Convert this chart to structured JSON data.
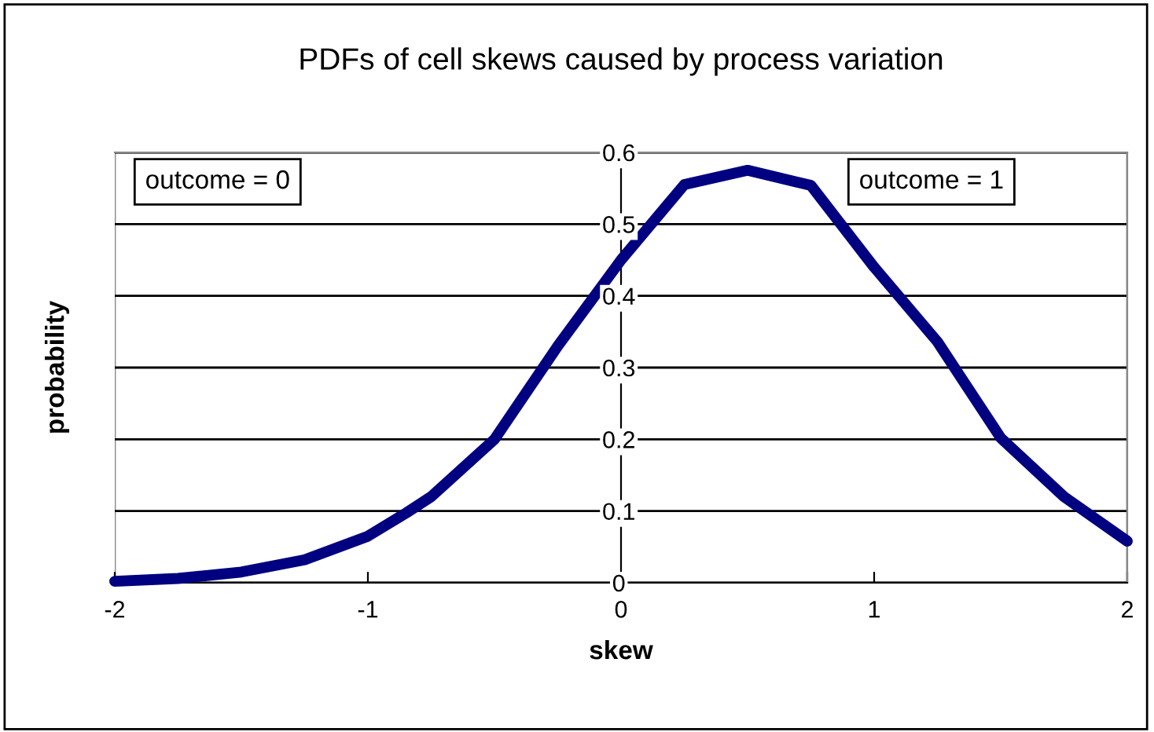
{
  "chart_data": {
    "type": "line",
    "title": "PDFs of cell skews caused by process variation",
    "xlabel": "skew",
    "ylabel": "probability",
    "x": [
      -2,
      -1.75,
      -1.5,
      -1.25,
      -1,
      -0.85,
      -0.75,
      -0.5,
      -0.25,
      0,
      0.25,
      0.5,
      0.75,
      1,
      1.25,
      1.5,
      1.75,
      2
    ],
    "series": [
      {
        "color": "#000080",
        "values": [
          0.002,
          0.006,
          0.015,
          0.032,
          0.065,
          0.097,
          0.12,
          0.2,
          0.33,
          0.45,
          0.555,
          0.575,
          0.554,
          0.44,
          0.336,
          0.202,
          0.12,
          0.058
        ]
      }
    ],
    "xlim": [
      -2,
      2
    ],
    "xticks": [
      -2,
      -1,
      0,
      1,
      2
    ],
    "ylim": [
      0,
      0.6
    ],
    "yticks": [
      0,
      0.1,
      0.2,
      0.3,
      0.4,
      0.5,
      0.6
    ],
    "grid": "y",
    "legend": false,
    "marker": "none",
    "line_style": "solid",
    "annotations": [
      "outcome = 0",
      "outcome = 1"
    ]
  }
}
